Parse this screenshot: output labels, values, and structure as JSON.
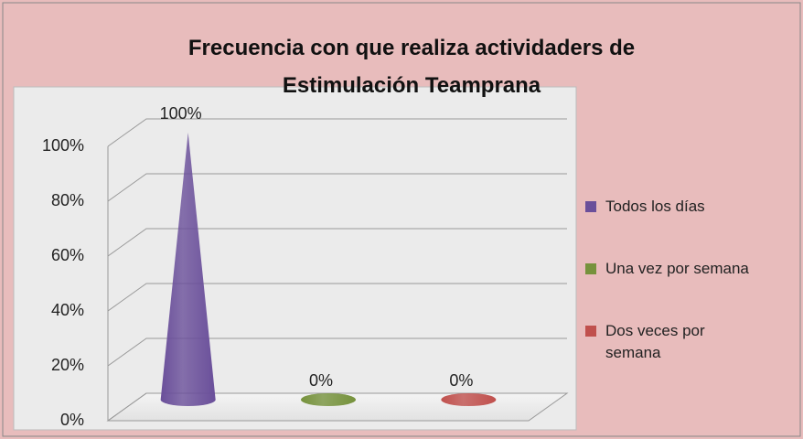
{
  "chart_data": {
    "type": "cone",
    "title": "Frecuencia con que realiza actividaders de Estimulación Teamprana",
    "series": [
      {
        "name": "Todos los días",
        "color": "#6a4f9a",
        "values": [
          100
        ],
        "value_labels": [
          "100%"
        ]
      },
      {
        "name": "Una vez por semana",
        "color": "#76923c",
        "values": [
          0
        ],
        "value_labels": [
          "0%"
        ]
      },
      {
        "name": "Dos veces por semana",
        "color": "#c0504d",
        "values": [
          0
        ],
        "value_labels": [
          "0%"
        ]
      }
    ],
    "ylim": [
      0,
      100
    ],
    "yticks": [
      {
        "value": 0,
        "label": "0%"
      },
      {
        "value": 20,
        "label": "20%"
      },
      {
        "value": 40,
        "label": "40%"
      },
      {
        "value": 60,
        "label": "60%"
      },
      {
        "value": 80,
        "label": "80%"
      },
      {
        "value": 100,
        "label": "100%"
      }
    ],
    "grid": true,
    "legend": "right"
  }
}
